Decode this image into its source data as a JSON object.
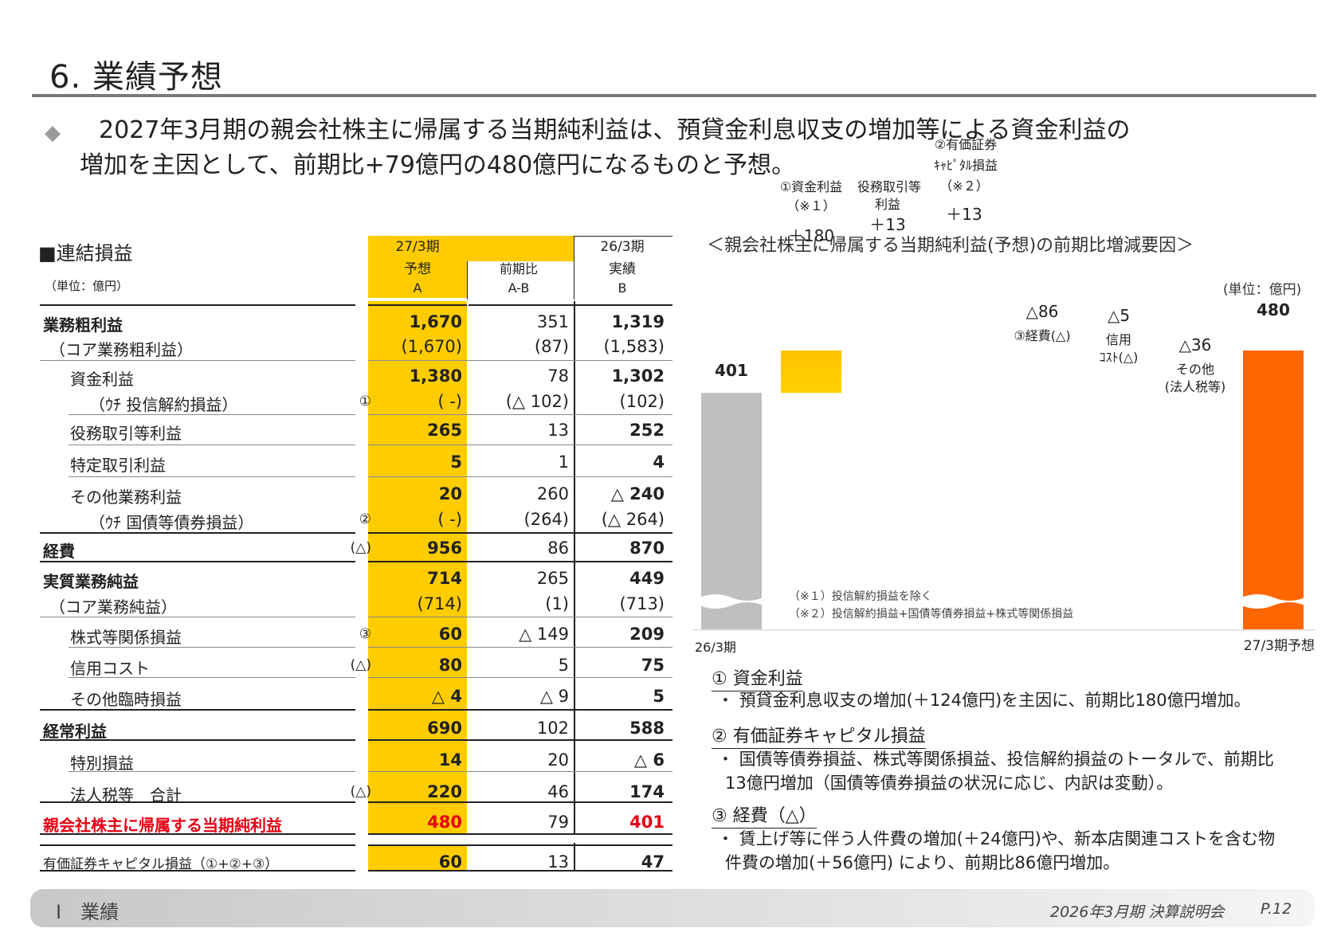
{
  "page": {
    "title": "6.  業績予想",
    "lead_line1": "2027年3月期の親会社株主に帰属する当期純利益は、預貸金利息収支の増加等による資金利益の",
    "lead_line2": "増加を主因として、前期比+79億円の480億円になるものと予想。",
    "lead_bullet": "◆"
  },
  "table": {
    "title": "■連結損益",
    "unit": "（単位：億円）",
    "headers": {
      "a_period": "27/3期",
      "a_label": "予想",
      "a_code": "A",
      "d_label": "前期比",
      "d_code": "A-B",
      "b_period": "26/3期",
      "b_label": "実績",
      "b_code": "B"
    },
    "rows": [
      {
        "label": "業務粗利益",
        "style": "bold",
        "a": "1,670",
        "d": "351",
        "b": "1,319"
      },
      {
        "label": "（コア業務粗利益）",
        "style": "sub",
        "a": "(1,670)",
        "d": "(87)",
        "b": "(1,583)"
      },
      {
        "label": "資金利益",
        "style": "indent",
        "a": "1,380",
        "d": "78",
        "b": "1,302"
      },
      {
        "label": "（ｳﾁ 投信解約損益）",
        "style": "indent2",
        "mark": "①",
        "a": "( -)",
        "d": "(△ 102)",
        "b": "(102)"
      },
      {
        "label": "役務取引等利益",
        "style": "indent",
        "a": "265",
        "d": "13",
        "b": "252"
      },
      {
        "label": "特定取引利益",
        "style": "indent",
        "a": "5",
        "d": "1",
        "b": "4"
      },
      {
        "label": "その他業務利益",
        "style": "indent",
        "a": "20",
        "d": "260",
        "b": "△ 240"
      },
      {
        "label": "（ｳﾁ 国債等債券損益）",
        "style": "indent2",
        "mark": "②",
        "a": "( -)",
        "d": "(264)",
        "b": "(△ 264)"
      },
      {
        "label": "経費",
        "style": "bold",
        "mark": "(△)",
        "a": "956",
        "d": "86",
        "b": "870"
      },
      {
        "label": "実質業務純益",
        "style": "bold",
        "a": "714",
        "d": "265",
        "b": "449"
      },
      {
        "label": "（コア業務純益）",
        "style": "sub",
        "a": "(714)",
        "d": "(1)",
        "b": "(713)"
      },
      {
        "label": "株式等関係損益",
        "style": "indent",
        "mark": "③",
        "a": "60",
        "d": "△ 149",
        "b": "209"
      },
      {
        "label": "信用コスト",
        "style": "indent",
        "mark": "(△)",
        "a": "80",
        "d": "5",
        "b": "75"
      },
      {
        "label": "その他臨時損益",
        "style": "indent",
        "a": "△ 4",
        "d": "△ 9",
        "b": "5"
      },
      {
        "label": "経常利益",
        "style": "bold",
        "a": "690",
        "d": "102",
        "b": "588"
      },
      {
        "label": "特別損益",
        "style": "indent",
        "a": "14",
        "d": "20",
        "b": "△ 6"
      },
      {
        "label": "法人税等　合計",
        "style": "indent",
        "mark": "(△)",
        "a": "220",
        "d": "46",
        "b": "174"
      },
      {
        "label": "親会社株主に帰属する当期純利益",
        "style": "red",
        "a": "480",
        "d": "79",
        "b": "401"
      },
      {
        "label": "有価証券キャピタル損益（①+②+③）",
        "style": "small",
        "a": "60",
        "d": "13",
        "b": "47"
      }
    ]
  },
  "chart_data": {
    "type": "bar",
    "subtype": "waterfall",
    "title": "＜親会社株主に帰属する当期純利益(予想)の前期比増減要因＞",
    "unit": "(単位：億円)",
    "start": {
      "label": "26/3期",
      "value": 401,
      "value_label": "401"
    },
    "end": {
      "label": "27/3期予想",
      "value": 480,
      "value_label": "480"
    },
    "steps": [
      {
        "label": "①資金利益",
        "sub": "（※１）",
        "value": 180,
        "value_label": "＋180"
      },
      {
        "label": "役務取引等",
        "sub": "利益",
        "value": 13,
        "value_label": "＋13"
      },
      {
        "label": "②有価証券",
        "sub": "ｷｬﾋﾟﾀﾙ損益",
        "sub2": "（※２）",
        "value": 13,
        "value_label": "＋13"
      },
      {
        "label": "③経費(△)",
        "value": -86,
        "value_label": "△86"
      },
      {
        "label": "信用",
        "sub": "ｺｽﾄ(△)",
        "value": -5,
        "value_label": "△5"
      },
      {
        "label": "その他",
        "sub": "(法人税等)",
        "value": -36,
        "value_label": "△36"
      }
    ],
    "notes": [
      "（※１）投信解約損益を除く",
      "（※２）投信解約損益+国債等債券損益+株式等関係損益"
    ],
    "colors": {
      "start": "#bfbfbf",
      "increase": "#f5a100",
      "decrease": "#3f86f0",
      "end": "#ff6600"
    }
  },
  "commentary": [
    {
      "heading": "① 資金利益",
      "body": "・ 預貸金利息収支の増加(＋124億円)を主因に、前期比180億円増加。"
    },
    {
      "heading": "② 有価証券キャピタル損益",
      "body1": "・ 国債等債券損益、株式等関係損益、投信解約損益のトータルで、前期比",
      "body2": "13億円増加（国債等債券損益の状況に応じ、内訳は変動）。"
    },
    {
      "heading": "③ 経費（△）",
      "body1": "・ 賃上げ等に伴う人件費の増加(＋24億円)や、新本店関連コストを含む物",
      "body2": "件費の増加(＋56億円) により、前期比86億円増加。"
    }
  ],
  "footer": {
    "section": "Ⅰ　業績",
    "doc": "2026年3月期 決算説明会",
    "page": "P.12"
  }
}
